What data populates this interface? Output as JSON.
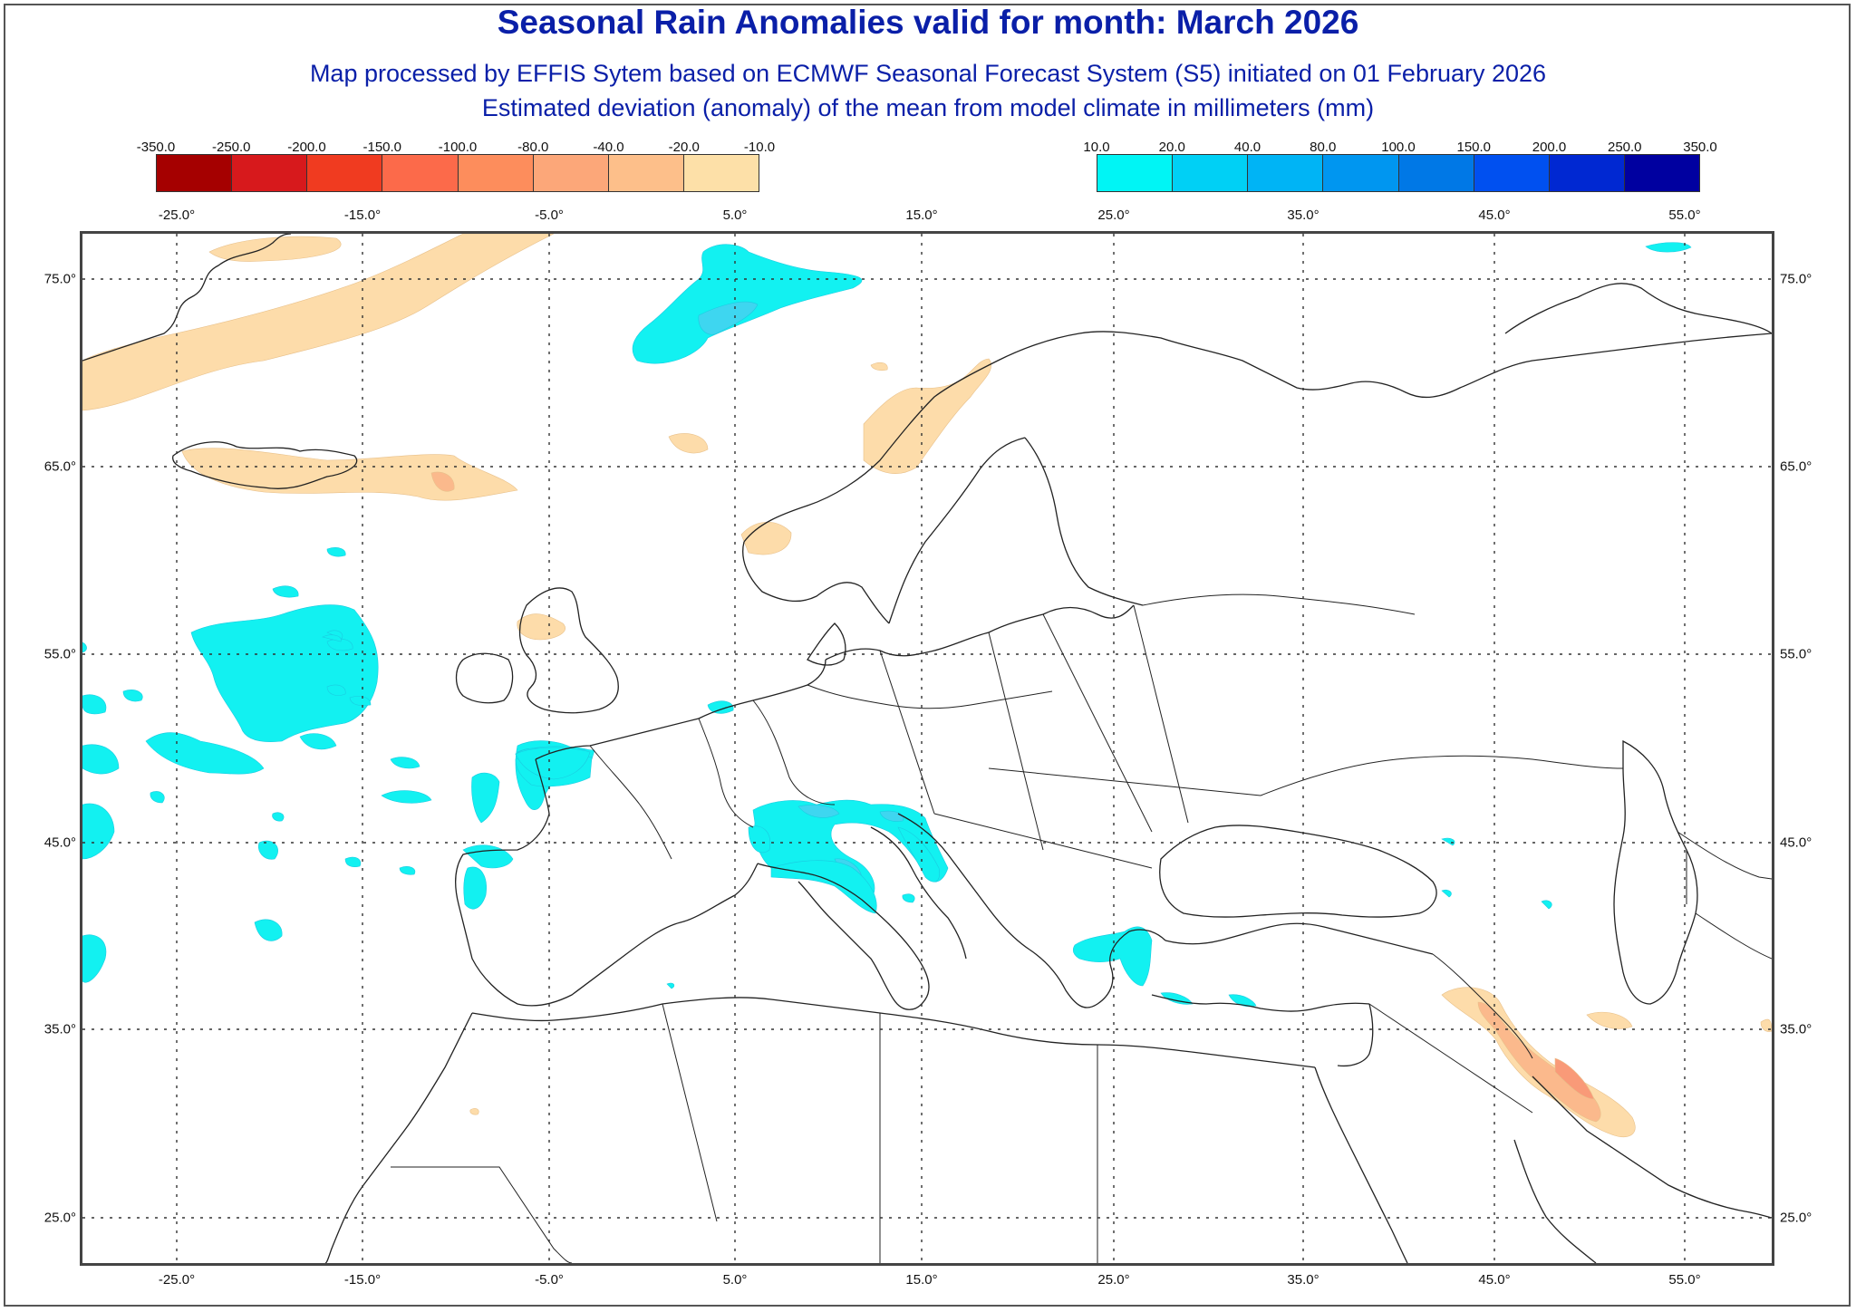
{
  "header": {
    "title": "Seasonal Rain Anomalies valid for month: March 2026",
    "subtitle1": "Map processed by EFFIS Sytem based on ECMWF Seasonal Forecast System (S5) initiated on 01 February 2026",
    "subtitle2": "Estimated deviation (anomaly) of the mean from model climate in millimeters (mm)"
  },
  "legend": {
    "negative": {
      "labels": [
        "-350.0",
        "-250.0",
        "-200.0",
        "-150.0",
        "-100.0",
        "-80.0",
        "-40.0",
        "-20.0",
        "-10.0"
      ],
      "colors": [
        "#a50000",
        "#d7191c",
        "#f03b20",
        "#fc6a4a",
        "#fd8d5c",
        "#fca779",
        "#fdbf8a",
        "#fde0a8"
      ]
    },
    "positive": {
      "labels": [
        "10.0",
        "20.0",
        "40.0",
        "80.0",
        "100.0",
        "150.0",
        "200.0",
        "250.0",
        "350.0"
      ],
      "colors": [
        "#00f5f5",
        "#00d0f5",
        "#00b4f5",
        "#0096f0",
        "#0078e6",
        "#0050f0",
        "#0028d2",
        "#0000a0"
      ]
    }
  },
  "axes": {
    "lon_labels": [
      "-25.0°",
      "-15.0°",
      "-5.0°",
      "5.0°",
      "15.0°",
      "25.0°",
      "35.0°",
      "45.0°",
      "55.0°"
    ],
    "lat_labels": [
      "75.0°",
      "65.0°",
      "55.0°",
      "45.0°",
      "35.0°",
      "25.0°"
    ]
  },
  "colors": {
    "title": "#0a1fa8",
    "dry_light": "#fddcaa",
    "dry_mid": "#fbb98c",
    "dry_strong": "#f99a78",
    "wet_light": "#12f1f1",
    "wet_mid": "#3ed6f0",
    "wet_strong": "#2ab8ea",
    "coast": "#222222",
    "grid": "#333333"
  }
}
